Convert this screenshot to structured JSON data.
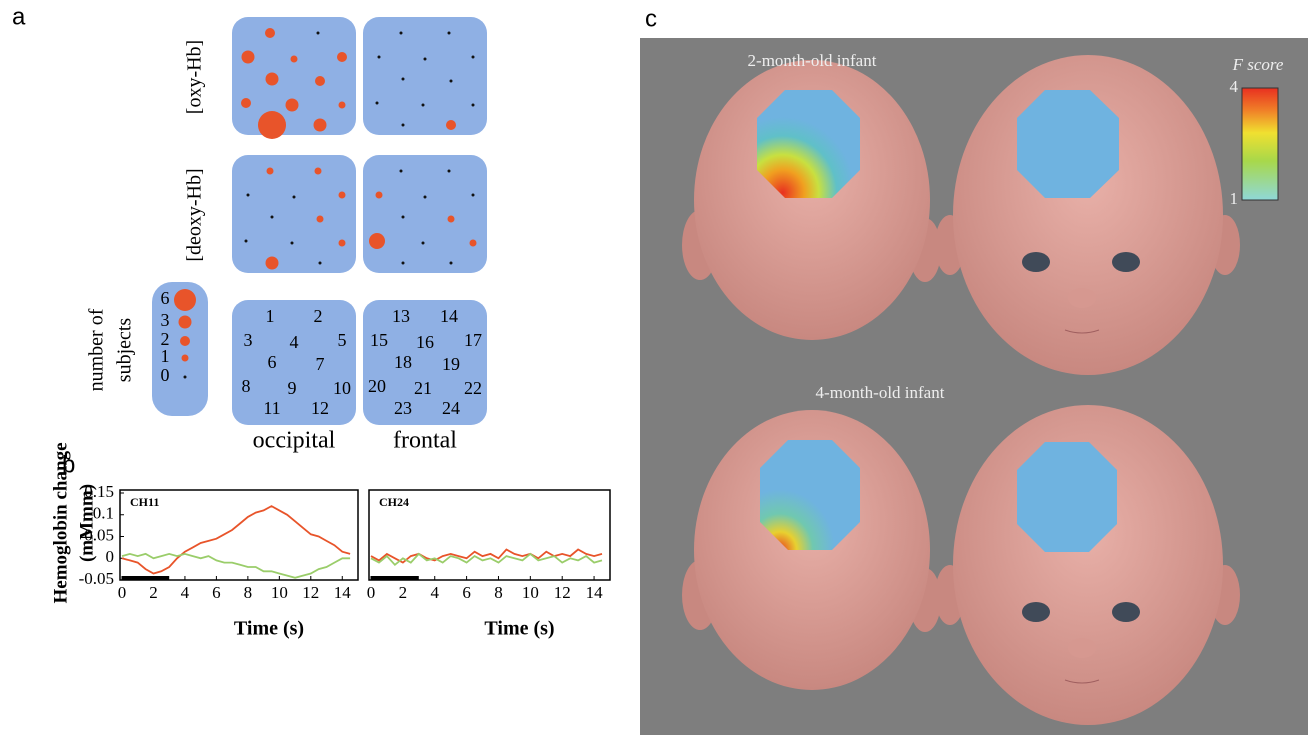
{
  "panel_a": {
    "label": "a",
    "rows": [
      {
        "label": "[oxy-Hb]",
        "occipital": [
          2,
          0,
          3,
          1,
          2,
          3,
          2,
          2,
          3,
          1,
          8,
          3
        ],
        "frontal": [
          0,
          0,
          0,
          0,
          0,
          0,
          0,
          0,
          0,
          0,
          0,
          2
        ]
      },
      {
        "label": "[deoxy-Hb]",
        "occipital": [
          1,
          1,
          0,
          0,
          1,
          0,
          1,
          0,
          0,
          1,
          3,
          0
        ],
        "frontal": [
          0,
          0,
          1,
          0,
          0,
          0,
          1,
          4,
          0,
          1,
          0,
          0
        ]
      }
    ],
    "regions": [
      {
        "label": "occipital",
        "channels": [
          1,
          2,
          3,
          4,
          5,
          6,
          7,
          8,
          9,
          10,
          11,
          12
        ]
      },
      {
        "label": "frontal",
        "channels": [
          13,
          14,
          15,
          16,
          17,
          18,
          19,
          20,
          21,
          22,
          23,
          24
        ]
      }
    ],
    "legend": {
      "title": [
        "number of",
        "subjects"
      ],
      "values": [
        6,
        3,
        2,
        1,
        0
      ]
    }
  },
  "panel_b": {
    "label": "b"
  },
  "chart_data": [
    {
      "type": "line",
      "title": "CH11",
      "ylabel": [
        "Hemoglobin change",
        "(mMmm)"
      ],
      "xlabel": "Time (s)",
      "x": [
        0,
        0.5,
        1,
        1.5,
        2,
        2.5,
        3,
        3.5,
        4,
        4.5,
        5,
        5.5,
        6,
        6.5,
        7,
        7.5,
        8,
        8.5,
        9,
        9.5,
        10,
        10.5,
        11,
        11.5,
        12,
        12.5,
        13,
        13.5,
        14,
        14.5
      ],
      "series": [
        {
          "color": "#e8542a",
          "values": [
            0,
            -0.005,
            -0.01,
            -0.025,
            -0.035,
            -0.03,
            -0.02,
            0,
            0.015,
            0.025,
            0.035,
            0.04,
            0.045,
            0.055,
            0.065,
            0.08,
            0.095,
            0.105,
            0.11,
            0.12,
            0.11,
            0.1,
            0.085,
            0.07,
            0.055,
            0.05,
            0.04,
            0.03,
            0.015,
            0.01
          ]
        },
        {
          "color": "#9acd6a",
          "values": [
            0.005,
            0.01,
            0.005,
            0.01,
            0,
            0.005,
            0.01,
            0.005,
            0.01,
            0.005,
            0,
            0.005,
            -0.005,
            -0.01,
            -0.01,
            -0.015,
            -0.02,
            -0.02,
            -0.03,
            -0.03,
            -0.035,
            -0.04,
            -0.045,
            -0.04,
            -0.035,
            -0.025,
            -0.02,
            -0.01,
            0,
            0
          ]
        }
      ],
      "stimulus": [
        0,
        3
      ],
      "xlim": [
        0,
        15
      ],
      "ylim": [
        -0.05,
        0.15
      ],
      "xticks": [
        0,
        2,
        4,
        6,
        8,
        10,
        12,
        14
      ],
      "yticks": [
        -0.05,
        0,
        0.05,
        0.1,
        0.15
      ]
    },
    {
      "type": "line",
      "title": "CH24",
      "xlabel": "Time (s)",
      "x": [
        0,
        0.5,
        1,
        1.5,
        2,
        2.5,
        3,
        3.5,
        4,
        4.5,
        5,
        5.5,
        6,
        6.5,
        7,
        7.5,
        8,
        8.5,
        9,
        9.5,
        10,
        10.5,
        11,
        11.5,
        12,
        12.5,
        13,
        13.5,
        14,
        14.5
      ],
      "series": [
        {
          "color": "#e8542a",
          "values": [
            0.005,
            -0.005,
            0.01,
            0,
            -0.01,
            0.005,
            0.01,
            0,
            -0.005,
            0.005,
            0.01,
            0.005,
            0,
            0.015,
            0.005,
            0.01,
            0,
            0.02,
            0.01,
            0.005,
            0.01,
            0,
            0.015,
            0.005,
            0.01,
            0.005,
            0.02,
            0.01,
            0.005,
            0.01
          ]
        },
        {
          "color": "#9acd6a",
          "values": [
            0,
            -0.01,
            0.005,
            -0.015,
            0,
            -0.01,
            0.01,
            -0.005,
            0,
            -0.01,
            0.005,
            0,
            -0.01,
            0.005,
            -0.005,
            0,
            -0.01,
            0.005,
            0,
            -0.005,
            0.01,
            -0.005,
            0,
            0.005,
            -0.01,
            0,
            -0.005,
            0.005,
            -0.01,
            -0.005
          ]
        }
      ],
      "stimulus": [
        0,
        3
      ],
      "xlim": [
        0,
        15
      ],
      "ylim": [
        -0.05,
        0.15
      ],
      "xticks": [
        0,
        2,
        4,
        6,
        8,
        10,
        12,
        14
      ]
    }
  ],
  "panel_c": {
    "label": "c",
    "groups": [
      "2-month-old infant",
      "4-month-old infant"
    ],
    "colorbar": {
      "title": "F score",
      "lim": [
        1,
        4
      ],
      "ticks": [
        1,
        4
      ]
    }
  }
}
